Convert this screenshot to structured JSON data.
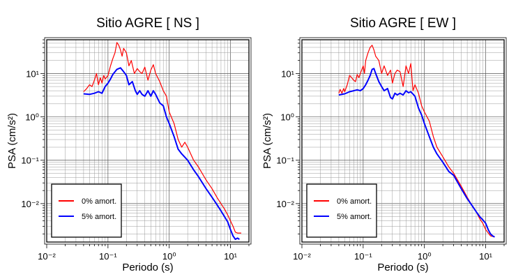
{
  "chart_data": [
    {
      "type": "line",
      "title": "Sitio AGRE [ NS ]",
      "xlabel": "Periodo (s)",
      "ylabel": "PSA (cm/s²)",
      "xscale": "log",
      "yscale": "log",
      "xlim": [
        0.01,
        20
      ],
      "ylim": [
        0.0013,
        60
      ],
      "grid": true,
      "legend_placement": "bottom-left",
      "x_ticks": [
        "10⁻²",
        "10⁻¹",
        "10⁰",
        "10¹"
      ],
      "y_ticks": [
        "10⁻²",
        "10⁻¹",
        "10⁰",
        "10¹"
      ],
      "series": [
        {
          "name": "0% amort.",
          "color": "#ff0000",
          "x": [
            0.04,
            0.045,
            0.05,
            0.055,
            0.06,
            0.065,
            0.07,
            0.075,
            0.08,
            0.085,
            0.09,
            0.1,
            0.11,
            0.12,
            0.13,
            0.14,
            0.15,
            0.16,
            0.17,
            0.18,
            0.2,
            0.22,
            0.24,
            0.27,
            0.3,
            0.33,
            0.36,
            0.4,
            0.45,
            0.5,
            0.55,
            0.6,
            0.7,
            0.8,
            0.9,
            1.0,
            1.2,
            1.4,
            1.6,
            1.8,
            2.0,
            2.5,
            3.0,
            4.0,
            5.0,
            6.0,
            7.0,
            8.0,
            9.0,
            10.0,
            11.0,
            12.0,
            13.0,
            15.0
          ],
          "y": [
            3.8,
            4.5,
            5.5,
            5.0,
            7.0,
            10.0,
            5.5,
            8.0,
            6.0,
            9.0,
            7.5,
            9.0,
            15.0,
            22.0,
            30.0,
            52.0,
            45.0,
            35.0,
            25.0,
            38.0,
            30.0,
            15.0,
            20.0,
            10.0,
            13.0,
            11.0,
            10.0,
            14.0,
            7.0,
            12.0,
            16.0,
            10.0,
            6.5,
            4.0,
            3.0,
            1.3,
            0.7,
            0.3,
            0.2,
            0.26,
            0.2,
            0.1,
            0.07,
            0.035,
            0.022,
            0.014,
            0.01,
            0.0075,
            0.0055,
            0.004,
            0.003,
            0.0022,
            0.0021,
            0.0021
          ]
        },
        {
          "name": "5% amort.",
          "color": "#0000ff",
          "x": [
            0.04,
            0.05,
            0.06,
            0.07,
            0.08,
            0.09,
            0.1,
            0.11,
            0.12,
            0.14,
            0.16,
            0.18,
            0.2,
            0.22,
            0.25,
            0.28,
            0.3,
            0.33,
            0.36,
            0.4,
            0.45,
            0.5,
            0.55,
            0.6,
            0.7,
            0.8,
            0.9,
            1.0,
            1.2,
            1.4,
            1.6,
            2.0,
            2.5,
            3.0,
            4.0,
            5.0,
            6.0,
            7.0,
            8.0,
            9.0,
            10.0,
            11.0,
            12.0,
            13.0,
            14.0
          ],
          "y": [
            3.4,
            3.3,
            3.5,
            3.8,
            3.5,
            5.0,
            6.0,
            7.5,
            9.5,
            12.5,
            13.5,
            11.0,
            9.0,
            5.5,
            6.5,
            4.0,
            3.3,
            4.0,
            3.3,
            3.0,
            4.0,
            3.0,
            4.0,
            3.3,
            2.1,
            1.8,
            1.0,
            0.7,
            0.35,
            0.18,
            0.14,
            0.1,
            0.06,
            0.042,
            0.022,
            0.014,
            0.0095,
            0.0068,
            0.005,
            0.0038,
            0.0025,
            0.0018,
            0.0015,
            0.0016,
            0.0015
          ]
        }
      ]
    },
    {
      "type": "line",
      "title": "Sitio AGRE [ EW ]",
      "xlabel": "Periodo (s)",
      "ylabel": "PSA (cm/s²)",
      "xscale": "log",
      "yscale": "log",
      "xlim": [
        0.01,
        20
      ],
      "ylim": [
        0.0013,
        60
      ],
      "grid": true,
      "legend_placement": "bottom-left",
      "x_ticks": [
        "10⁻²",
        "10⁻¹",
        "10⁰",
        "10¹"
      ],
      "y_ticks": [
        "10⁻²",
        "10⁻¹",
        "10⁰",
        "10¹"
      ],
      "series": [
        {
          "name": "0% amort.",
          "color": "#ff0000",
          "x": [
            0.04,
            0.042,
            0.045,
            0.048,
            0.05,
            0.055,
            0.06,
            0.065,
            0.07,
            0.075,
            0.08,
            0.085,
            0.09,
            0.1,
            0.105,
            0.11,
            0.12,
            0.13,
            0.14,
            0.15,
            0.16,
            0.18,
            0.2,
            0.22,
            0.25,
            0.28,
            0.3,
            0.33,
            0.36,
            0.4,
            0.45,
            0.5,
            0.55,
            0.6,
            0.65,
            0.7,
            0.8,
            0.9,
            1.0,
            1.2,
            1.4,
            1.6,
            2.0,
            2.5,
            3.0,
            4.0,
            5.0,
            6.0,
            7.0,
            8.0,
            9.0,
            10.0,
            12.0,
            14.0
          ],
          "y": [
            3.5,
            4.3,
            3.5,
            4.5,
            3.8,
            5.5,
            9.0,
            8.0,
            7.0,
            6.5,
            9.5,
            8.0,
            10.0,
            15.0,
            10.0,
            20.0,
            30.0,
            40.0,
            45.0,
            35.0,
            25.0,
            20.0,
            10.0,
            15.0,
            9.0,
            12.0,
            6.0,
            10.0,
            12.0,
            11.0,
            5.0,
            15.0,
            10.0,
            17.0,
            4.0,
            5.5,
            3.5,
            1.8,
            1.3,
            0.8,
            0.35,
            0.2,
            0.12,
            0.07,
            0.05,
            0.025,
            0.014,
            0.009,
            0.0065,
            0.0045,
            0.0035,
            0.0025,
            0.0018,
            0.0017
          ]
        },
        {
          "name": "5% amort.",
          "color": "#0000ff",
          "x": [
            0.04,
            0.05,
            0.06,
            0.07,
            0.08,
            0.09,
            0.1,
            0.11,
            0.12,
            0.13,
            0.14,
            0.15,
            0.16,
            0.18,
            0.2,
            0.22,
            0.25,
            0.28,
            0.3,
            0.33,
            0.36,
            0.4,
            0.45,
            0.5,
            0.55,
            0.6,
            0.7,
            0.8,
            0.9,
            1.0,
            1.2,
            1.4,
            1.6,
            2.0,
            2.5,
            3.0,
            4.0,
            5.0,
            6.0,
            7.0,
            8.0,
            9.0,
            10.0,
            11.0,
            12.0,
            13.0,
            14.0
          ],
          "y": [
            3.2,
            3.4,
            3.8,
            4.0,
            4.2,
            4.0,
            4.5,
            5.5,
            7.0,
            9.0,
            12.5,
            13.0,
            10.0,
            6.5,
            5.0,
            4.0,
            4.5,
            2.8,
            2.6,
            3.5,
            3.2,
            3.5,
            3.2,
            4.0,
            3.6,
            3.8,
            3.0,
            1.6,
            1.1,
            0.7,
            0.35,
            0.2,
            0.14,
            0.09,
            0.055,
            0.045,
            0.022,
            0.013,
            0.009,
            0.0065,
            0.005,
            0.0042,
            0.0035,
            0.0025,
            0.002,
            0.0018,
            0.0017
          ]
        }
      ]
    }
  ]
}
